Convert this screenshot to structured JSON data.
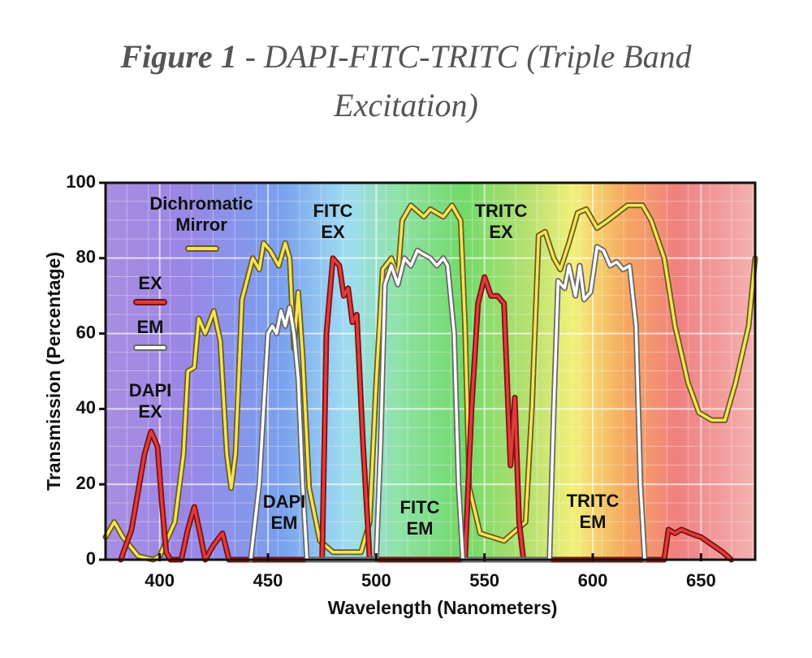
{
  "chart_data": {
    "type": "line",
    "title": "Figure 1",
    "subtitle": "- DAPI-FITC-TRITC (Triple Band Excitation)",
    "x_label": "Wavelength (Nanometers)",
    "y_label": "Transmission (Percentage)",
    "xlim": [
      375,
      675
    ],
    "xticks": [
      400,
      450,
      500,
      550,
      600,
      650
    ],
    "ylim": [
      0,
      100
    ],
    "yticks": [
      0,
      20,
      40,
      60,
      80,
      100
    ],
    "grid": true,
    "series": [
      {
        "name": "Dichromatic Mirror",
        "color": "#f2e45c",
        "x": [
          375,
          379,
          383,
          390,
          397,
          400,
          407,
          411,
          413,
          416,
          418,
          421,
          425,
          428,
          431,
          433,
          435,
          438,
          443,
          446,
          448,
          451,
          455,
          458,
          460,
          462,
          464,
          466,
          469,
          474,
          480,
          493,
          497,
          500,
          503,
          507,
          510,
          512,
          516,
          522,
          525,
          531,
          535,
          539,
          541,
          543,
          548,
          559,
          569,
          572,
          575,
          578,
          582,
          585,
          589,
          593,
          597,
          602,
          607,
          616,
          623,
          627,
          633,
          638,
          644,
          649,
          655,
          661,
          666,
          672,
          675
        ],
        "values": [
          6,
          10,
          6,
          1,
          0,
          1,
          10,
          28,
          50,
          51,
          64,
          60,
          66,
          58,
          28,
          19,
          28,
          69,
          80,
          77,
          84,
          82,
          78,
          84,
          80,
          56,
          71,
          54,
          19,
          5,
          2,
          2,
          10,
          47,
          77,
          80,
          75,
          90,
          94,
          91,
          93,
          91,
          94,
          90,
          62,
          19,
          7,
          5,
          10,
          41,
          86,
          87,
          80,
          77,
          84,
          92,
          93,
          88,
          90,
          94,
          94,
          90,
          80,
          62,
          47,
          39,
          37,
          37,
          47,
          62,
          80
        ]
      },
      {
        "name": "EX",
        "color": "#e23b3b",
        "x": [
          382,
          387,
          390,
          393,
          396,
          399,
          401,
          403,
          405,
          410,
          413,
          416,
          419,
          421,
          425,
          429,
          432,
          475,
          477,
          480,
          483,
          485,
          487,
          489,
          491,
          494,
          497,
          541,
          544,
          547,
          550,
          553,
          556,
          559,
          562,
          564,
          566,
          568,
          633,
          635,
          638,
          641,
          645,
          650,
          655,
          660,
          664
        ],
        "values": [
          0,
          8,
          18,
          28,
          34,
          30,
          15,
          2,
          0,
          0,
          8,
          14,
          6,
          0,
          4,
          7,
          0,
          0,
          60,
          80,
          78,
          70,
          72,
          63,
          65,
          30,
          0,
          0,
          40,
          68,
          75,
          70,
          70,
          68,
          25,
          43,
          10,
          0,
          0,
          8,
          7,
          8,
          7,
          6,
          4,
          2,
          0
        ]
      },
      {
        "name": "EM",
        "color": "#ffffff",
        "x": [
          442,
          446,
          450,
          452,
          454,
          456,
          458,
          460,
          462,
          464,
          466,
          468,
          500,
          502,
          504,
          507,
          510,
          513,
          516,
          519,
          522,
          525,
          528,
          531,
          533,
          536,
          538,
          540,
          580,
          582,
          584,
          587,
          589,
          592,
          594,
          596,
          599,
          602,
          605,
          608,
          611,
          614,
          617,
          620,
          622,
          624
        ],
        "values": [
          0,
          20,
          60,
          62,
          60,
          66,
          62,
          67,
          60,
          48,
          20,
          0,
          0,
          30,
          73,
          78,
          73,
          80,
          78,
          82,
          81,
          80,
          78,
          80,
          78,
          60,
          20,
          0,
          0,
          40,
          74,
          72,
          78,
          70,
          78,
          69,
          71,
          83,
          82,
          78,
          79,
          77,
          78,
          62,
          20,
          0
        ]
      }
    ],
    "annotations": [
      "DAPI EX",
      "FITC EX",
      "TRITC EX",
      "DAPI EM",
      "FITC EM",
      "TRITC EM"
    ]
  }
}
